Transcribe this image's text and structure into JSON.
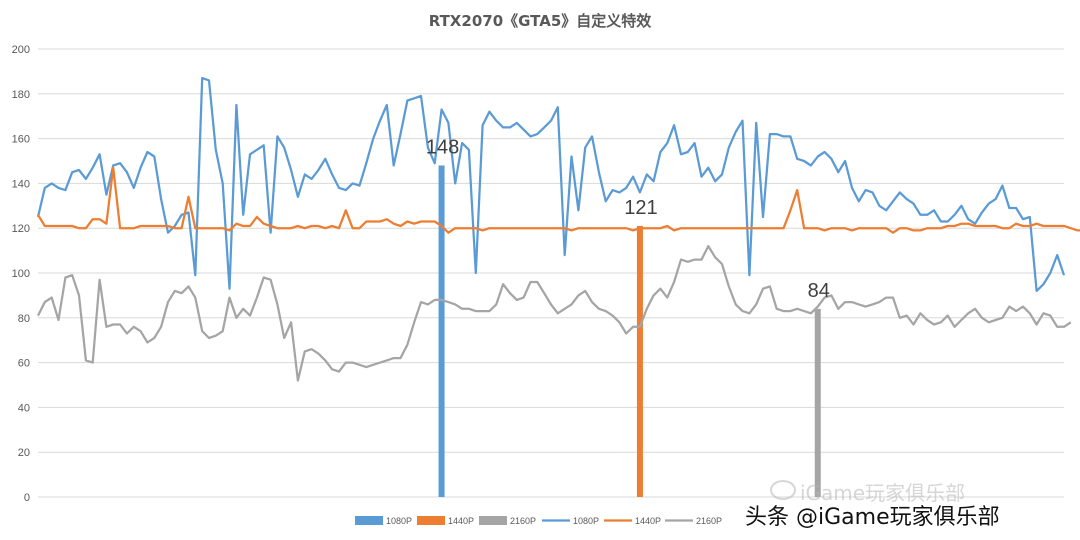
{
  "chart_data": {
    "type": "line",
    "title": "RTX2070《GTA5》自定义特效",
    "ylim": [
      0,
      200
    ],
    "yticks": [
      0,
      20,
      40,
      60,
      80,
      100,
      120,
      140,
      160,
      180,
      200
    ],
    "grid": true,
    "legend_position": "bottom",
    "bars": [
      {
        "name": "1080P",
        "value": 148,
        "label": "148",
        "color": "#5b9bd5",
        "x": 59
      },
      {
        "name": "1440P",
        "value": 121,
        "label": "121",
        "color": "#ed7d31",
        "x": 88
      },
      {
        "name": "2160P",
        "value": 84,
        "label": "84",
        "color": "#a5a5a5",
        "x": 114
      }
    ],
    "series": [
      {
        "name": "1080P",
        "color": "#5b9bd5",
        "values": [
          125,
          138,
          140,
          138,
          137,
          145,
          146,
          142,
          147,
          153,
          135,
          148,
          149,
          145,
          138,
          147,
          154,
          152,
          133,
          118,
          121,
          126,
          127,
          99,
          187,
          186,
          155,
          140,
          93,
          175,
          126,
          153,
          155,
          157,
          118,
          161,
          156,
          146,
          134,
          144,
          142,
          146,
          151,
          144,
          138,
          137,
          140,
          139,
          149,
          160,
          168,
          175,
          148,
          162,
          177,
          178,
          179,
          156,
          149,
          173,
          167,
          140,
          158,
          155,
          100,
          166,
          172,
          168,
          165,
          165,
          167,
          164,
          161,
          162,
          165,
          168,
          174,
          108,
          152,
          128,
          156,
          161,
          145,
          132,
          137,
          136,
          138,
          143,
          136,
          144,
          141,
          154,
          158,
          166,
          153,
          154,
          158,
          143,
          147,
          141,
          144,
          156,
          163,
          168,
          99,
          167,
          125,
          162,
          162,
          161,
          161,
          151,
          150,
          148,
          152,
          154,
          151,
          145,
          150,
          138,
          132,
          137,
          136,
          130,
          128,
          132,
          136,
          133,
          131,
          126,
          126,
          128,
          123,
          123,
          126,
          130,
          124,
          122,
          127,
          131,
          133,
          139,
          129,
          129,
          124,
          125,
          92,
          95,
          100,
          108,
          99
        ]
      },
      {
        "name": "1440P",
        "color": "#ed7d31",
        "values": [
          126,
          121,
          121,
          121,
          121,
          121,
          120,
          120,
          124,
          124,
          122,
          147,
          120,
          120,
          120,
          121,
          121,
          121,
          121,
          121,
          120,
          120,
          134,
          120,
          120,
          120,
          120,
          120,
          119,
          122,
          121,
          121,
          125,
          122,
          121,
          120,
          120,
          120,
          121,
          120,
          121,
          121,
          120,
          121,
          120,
          128,
          120,
          120,
          123,
          123,
          123,
          124,
          122,
          121,
          123,
          122,
          123,
          123,
          123,
          121,
          118,
          120,
          120,
          120,
          120,
          119,
          120,
          120,
          120,
          120,
          120,
          120,
          120,
          120,
          120,
          120,
          120,
          120,
          119,
          120,
          120,
          120,
          120,
          120,
          120,
          120,
          120,
          119,
          120,
          120,
          120,
          120,
          121,
          119,
          120,
          120,
          120,
          120,
          120,
          120,
          120,
          120,
          120,
          120,
          120,
          120,
          120,
          120,
          120,
          120,
          128,
          137,
          120,
          120,
          120,
          119,
          120,
          120,
          120,
          119,
          120,
          120,
          120,
          120,
          120,
          118,
          120,
          120,
          119,
          119,
          120,
          120,
          120,
          121,
          121,
          122,
          122,
          121,
          121,
          121,
          121,
          120,
          120,
          122,
          121,
          121,
          122,
          121,
          121,
          121,
          121,
          120,
          119,
          119,
          120,
          120
        ]
      },
      {
        "name": "2160P",
        "color": "#a5a5a5",
        "values": [
          81,
          87,
          89,
          79,
          98,
          99,
          90,
          61,
          60,
          97,
          76,
          77,
          77,
          73,
          76,
          74,
          69,
          71,
          76,
          87,
          92,
          91,
          94,
          89,
          74,
          71,
          72,
          74,
          89,
          80,
          84,
          81,
          89,
          98,
          97,
          86,
          71,
          78,
          52,
          65,
          66,
          64,
          61,
          57,
          56,
          60,
          60,
          59,
          58,
          59,
          60,
          61,
          62,
          62,
          68,
          78,
          87,
          86,
          88,
          88,
          87,
          86,
          84,
          84,
          83,
          83,
          83,
          86,
          95,
          91,
          88,
          89,
          96,
          96,
          91,
          86,
          82,
          84,
          86,
          90,
          92,
          87,
          84,
          83,
          81,
          78,
          73,
          76,
          76,
          84,
          90,
          93,
          89,
          96,
          106,
          105,
          106,
          106,
          112,
          107,
          104,
          94,
          86,
          83,
          82,
          86,
          93,
          94,
          84,
          83,
          83,
          84,
          83,
          82,
          85,
          89,
          90,
          84,
          87,
          87,
          86,
          85,
          86,
          87,
          89,
          89,
          80,
          81,
          77,
          82,
          79,
          77,
          78,
          81,
          76,
          79,
          82,
          84,
          80,
          78,
          79,
          80,
          85,
          83,
          85,
          82,
          77,
          82,
          81,
          76,
          76,
          78
        ]
      }
    ]
  },
  "legend": [
    "1080P",
    "1440P",
    "2160P",
    "1080P",
    "1440P",
    "2160P"
  ],
  "watermark": {
    "line1": "iGame玩家俱乐部",
    "line2": "头条 @iGame玩家俱乐部"
  }
}
